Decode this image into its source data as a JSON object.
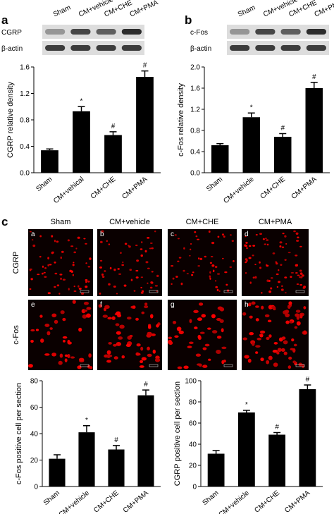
{
  "panel_labels": [
    "a",
    "b",
    "c"
  ],
  "blots": [
    {
      "lanes": [
        "Sham",
        "CM+vehicle",
        "CM+CHE",
        "CM+PMA"
      ],
      "rows": [
        "CGRP",
        "β-actin"
      ]
    },
    {
      "lanes": [
        "Sham",
        "CM+vehicle",
        "CM+CHE",
        "CM+PMA"
      ],
      "rows": [
        "c-Fos",
        "β-actin"
      ]
    }
  ],
  "images": {
    "columns": [
      "Sham",
      "CM+vehicle",
      "CM+CHE",
      "CM+PMA"
    ],
    "rows": [
      "CGRP",
      "c-Fos"
    ],
    "letters": [
      "a",
      "b",
      "c",
      "d",
      "e",
      "f",
      "g",
      "h"
    ]
  },
  "chart_data": [
    {
      "type": "bar",
      "ylabel": "CGRP relative density",
      "categories": [
        "Sham",
        "CM+vehical",
        "CM+CHE",
        "CM+PMA"
      ],
      "values": [
        0.34,
        0.93,
        0.57,
        1.45
      ],
      "errors": [
        0.02,
        0.07,
        0.05,
        0.09
      ],
      "annotations": [
        null,
        "*",
        "#",
        "#"
      ],
      "color": "#000000",
      "ylim": [
        0,
        1.6
      ],
      "yticks": [
        {
          "value": 0,
          "label": "0.0"
        },
        0.4,
        0.8,
        1.2,
        1.6
      ]
    },
    {
      "type": "bar",
      "ylabel": "c-Fos relative density",
      "categories": [
        "Sham",
        "CM+vehicle",
        "CM+CHE",
        "CM+PMA"
      ],
      "values": [
        0.52,
        1.05,
        0.68,
        1.6
      ],
      "errors": [
        0.03,
        0.08,
        0.06,
        0.11
      ],
      "annotations": [
        null,
        "*",
        "#",
        "#"
      ],
      "color": "#000000",
      "ylim": [
        0,
        2
      ],
      "yticks": [
        {
          "value": 0,
          "label": "0.0"
        },
        0.4,
        0.8,
        1.2,
        1.6,
        {
          "value": 2,
          "label": "2.0"
        }
      ]
    },
    {
      "type": "bar",
      "ylabel": "c-Fos positive cell per section",
      "categories": [
        "Sham",
        "CM+vehicle",
        "CM+CHE",
        "CM+PMA"
      ],
      "values": [
        21,
        41,
        28,
        69
      ],
      "errors": [
        3,
        5,
        3,
        4
      ],
      "annotations": [
        null,
        "*",
        "#",
        "#"
      ],
      "color": "#000000",
      "ylim": [
        0,
        80
      ],
      "yticks": [
        0,
        20,
        40,
        60,
        80
      ]
    },
    {
      "type": "bar",
      "ylabel": "CGRP positive cell per section",
      "categories": [
        "Sham",
        "CM+vehicle",
        "CM+CHE",
        "CM+PMA"
      ],
      "values": [
        31,
        70,
        49,
        92
      ],
      "errors": [
        3,
        2,
        2,
        4
      ],
      "annotations": [
        null,
        "*",
        "#",
        "#"
      ],
      "color": "#000000",
      "ylim": [
        0,
        100
      ],
      "yticks": [
        0,
        20,
        40,
        60,
        80,
        100
      ]
    }
  ]
}
